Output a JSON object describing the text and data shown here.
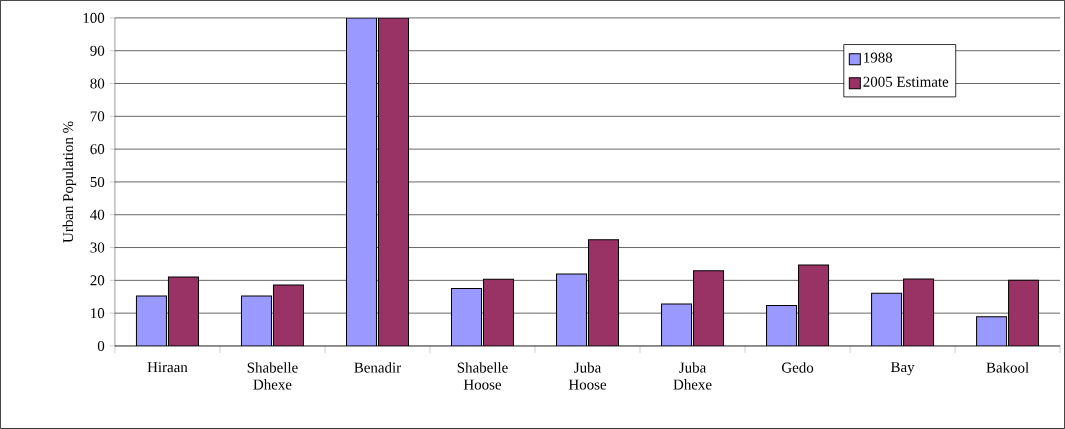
{
  "chart_data": {
    "type": "bar",
    "ylabel": "Urban Population %",
    "categories": [
      "Hiraan",
      "Shabelle Dhexe",
      "Benadir",
      "Shabelle Hoose",
      "Juba Hoose",
      "Juba Dhexe",
      "Gedo",
      "Bay",
      "Bakool"
    ],
    "series": [
      {
        "name": "1988",
        "color": "#9999ff",
        "values": [
          15.2,
          15.2,
          100,
          17.5,
          21.9,
          12.8,
          12.3,
          16.1,
          8.9
        ]
      },
      {
        "name": "2005 Estimate",
        "color": "#993366",
        "values": [
          21,
          18.6,
          100,
          20.3,
          32.4,
          22.9,
          24.7,
          20.4,
          20
        ]
      }
    ],
    "ylim": [
      0,
      100
    ],
    "yticks": [
      0,
      10,
      20,
      30,
      40,
      50,
      60,
      70,
      80,
      90,
      100
    ],
    "grid": "y",
    "legend": "top right"
  }
}
